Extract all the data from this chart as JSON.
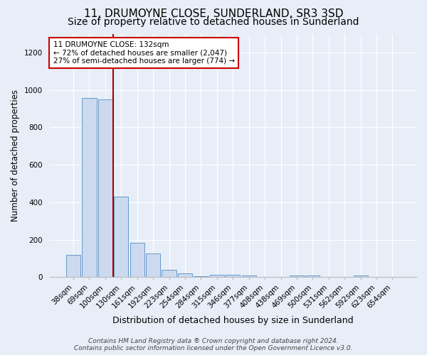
{
  "title": "11, DRUMOYNE CLOSE, SUNDERLAND, SR3 3SD",
  "subtitle": "Size of property relative to detached houses in Sunderland",
  "xlabel": "Distribution of detached houses by size in Sunderland",
  "ylabel": "Number of detached properties",
  "categories": [
    "38sqm",
    "69sqm",
    "100sqm",
    "130sqm",
    "161sqm",
    "192sqm",
    "223sqm",
    "254sqm",
    "284sqm",
    "315sqm",
    "346sqm",
    "377sqm",
    "408sqm",
    "438sqm",
    "469sqm",
    "500sqm",
    "531sqm",
    "562sqm",
    "592sqm",
    "623sqm",
    "654sqm"
  ],
  "values": [
    120,
    955,
    950,
    430,
    185,
    125,
    40,
    20,
    5,
    12,
    12,
    8,
    0,
    0,
    8,
    8,
    0,
    0,
    8,
    0,
    0
  ],
  "bar_color": "#ccd9ee",
  "bar_edge_color": "#6699cc",
  "vline_x_index": 3,
  "vline_color": "#aa0000",
  "annotation_text": "11 DRUMOYNE CLOSE: 132sqm\n← 72% of detached houses are smaller (2,047)\n27% of semi-detached houses are larger (774) →",
  "annotation_box_color": "white",
  "annotation_box_edge_color": "#cc0000",
  "ylim": [
    0,
    1300
  ],
  "yticks": [
    0,
    200,
    400,
    600,
    800,
    1000,
    1200
  ],
  "footer": "Contains HM Land Registry data ® Crown copyright and database right 2024.\nContains public sector information licensed under the Open Government Licence v3.0.",
  "bg_color": "#e8eef8",
  "plot_bg_color": "#e8eef8",
  "title_fontsize": 11,
  "subtitle_fontsize": 10,
  "xlabel_fontsize": 9,
  "ylabel_fontsize": 8.5,
  "footer_fontsize": 6.5,
  "tick_fontsize": 7.5
}
